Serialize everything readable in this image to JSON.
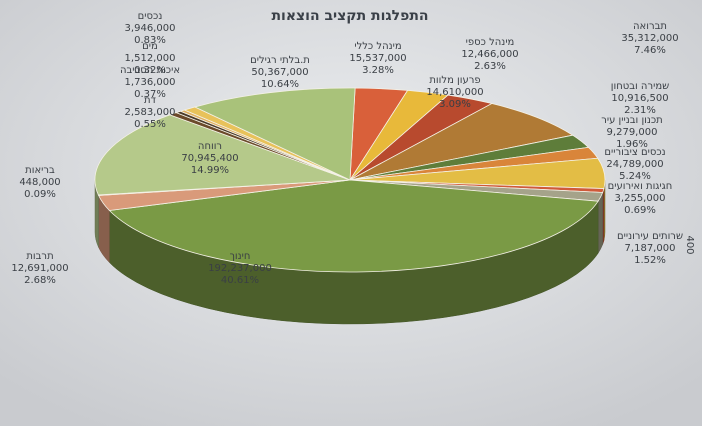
{
  "chart_data": {
    "type": "pie",
    "title": "התפלגות תקציב הוצאות",
    "side_note": "400",
    "categories": [
      "מינהל כללי",
      "מינהל כספי",
      "פרעון מלוות",
      "תברואה",
      "שמירה ובטחון",
      "תכנון ובניין עיר",
      "נכסים ציבוריים",
      "חגיגות ואירועים",
      "שרותים עירוניים",
      "חינוך",
      "תרבות",
      "בריאות",
      "רווחה",
      "דת",
      "איכות הסביבה",
      "מים",
      "נכסים",
      "ת.בלתי רגילים"
    ],
    "values": [
      15537000,
      12466000,
      14610000,
      35312000,
      10916500,
      9279000,
      24789000,
      3255000,
      7187000,
      192237000,
      12691000,
      448000,
      70945400,
      2583000,
      1736000,
      1512000,
      3946000,
      50367000
    ],
    "value_labels": [
      "15,537,000",
      "12,466,000",
      "14,610,000",
      "35,312,000",
      "10,916,500",
      "9,279,000",
      "24,789,000",
      "3,255,000",
      "7,187,000",
      "192,237,000",
      "12,691,000",
      "448,000",
      "70,945,400",
      "2,583,000",
      "1,736,000",
      "1,512,000",
      "3,946,000",
      "50,367,000"
    ],
    "percents": [
      3.28,
      2.63,
      3.09,
      7.46,
      2.31,
      1.96,
      5.24,
      0.69,
      1.52,
      40.61,
      2.68,
      0.09,
      14.99,
      0.55,
      0.37,
      0.32,
      0.83,
      10.64
    ],
    "percent_labels": [
      "3.28%",
      "2.63%",
      "3.09%",
      "7.46%",
      "2.31%",
      "1.96%",
      "5.24%",
      "0.69%",
      "1.52%",
      "40.61%",
      "2.68%",
      "0.09%",
      "14.99%",
      "0.55%",
      "0.37%",
      "0.32%",
      "0.83%",
      "10.64%"
    ],
    "colors": [
      "#d9603a",
      "#e8b93a",
      "#b84a2e",
      "#b07a35",
      "#5e7d3a",
      "#d9853a",
      "#e3bd45",
      "#cf5a3a",
      "#a5a38a",
      "#7a9a45",
      "#d99a7a",
      "#c8d0a0",
      "#b5c98a",
      "#6b4a2a",
      "#4a3a2a",
      "#e0b060",
      "#e8c25a",
      "#a9c27a"
    ]
  }
}
